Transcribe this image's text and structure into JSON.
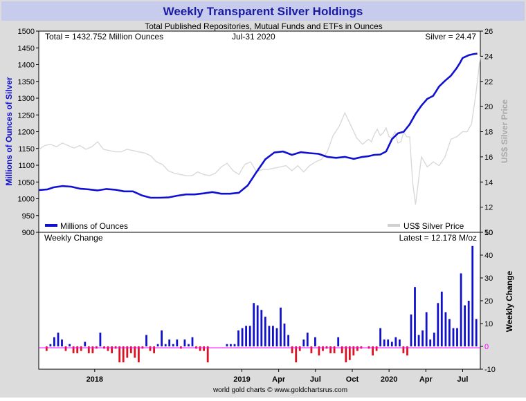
{
  "colors": {
    "frame_bg": "#dcdcdc",
    "title_band": "#c8ccec",
    "title_text": "#1a1aa0",
    "holdings_line": "#1010d0",
    "price_line": "#d9d9d9",
    "positive_bar": "#1111cc",
    "negative_bar": "#dd1122",
    "zero_line": "#ff00ff"
  },
  "chart_data": [
    {
      "type": "line",
      "title": "Weekly Transparent Silver Holdings",
      "subtitle": "Total Published Repositories, Mutual Funds and ETFs in Ounces",
      "annotations": {
        "total": "Total = 1432.752 Million Ounces",
        "date": "Jul-31  2020",
        "price": "Silver = 24.47"
      },
      "ylabel": "Millions of Ounces of Silver",
      "y2label": "US$ Silver Price",
      "ylim": [
        900,
        1500
      ],
      "yticks": [
        "1500",
        "1450",
        "1400",
        "1350",
        "1300",
        "1250",
        "1200",
        "1150",
        "1100",
        "1050",
        "1000",
        "950",
        "900"
      ],
      "y2lim": [
        10,
        26
      ],
      "y2ticks": [
        "26",
        "24",
        "22",
        "20",
        "18",
        "16",
        "14",
        "12",
        "10"
      ],
      "xlim": [
        2017.62,
        2020.62
      ],
      "grid": false,
      "legend_position": "bottom",
      "series": [
        {
          "name": "Millions of Ounces",
          "axis": "left",
          "x": [
            2017.62,
            2017.68,
            2017.72,
            2017.78,
            2017.84,
            2017.9,
            2017.96,
            2018.02,
            2018.08,
            2018.14,
            2018.2,
            2018.26,
            2018.32,
            2018.38,
            2018.44,
            2018.5,
            2018.56,
            2018.62,
            2018.68,
            2018.74,
            2018.8,
            2018.86,
            2018.92,
            2018.98,
            2019.04,
            2019.1,
            2019.16,
            2019.22,
            2019.28,
            2019.34,
            2019.4,
            2019.46,
            2019.52,
            2019.58,
            2019.64,
            2019.7,
            2019.76,
            2019.82,
            2019.86,
            2019.9,
            2019.94,
            2019.98,
            2020.02,
            2020.06,
            2020.1,
            2020.14,
            2020.18,
            2020.22,
            2020.26,
            2020.3,
            2020.34,
            2020.38,
            2020.42,
            2020.46,
            2020.48,
            2020.5,
            2020.52,
            2020.54,
            2020.56,
            2020.58,
            2020.6
          ],
          "values": [
            1026,
            1028,
            1034,
            1038,
            1036,
            1030,
            1028,
            1025,
            1029,
            1027,
            1022,
            1022,
            1010,
            1003,
            1003,
            1004,
            1009,
            1013,
            1013,
            1016,
            1020,
            1015,
            1015,
            1018,
            1040,
            1080,
            1118,
            1138,
            1141,
            1131,
            1139,
            1136,
            1134,
            1125,
            1122,
            1125,
            1119,
            1125,
            1127,
            1131,
            1132,
            1141,
            1178,
            1195,
            1200,
            1222,
            1253,
            1278,
            1298,
            1307,
            1335,
            1352,
            1367,
            1390,
            1404,
            1420,
            1424,
            1428,
            1430,
            1432,
            1433
          ]
        },
        {
          "name": "US$ Silver Price",
          "axis": "right",
          "x": [
            2017.62,
            2017.66,
            2017.7,
            2017.74,
            2017.78,
            2017.82,
            2017.86,
            2017.9,
            2017.94,
            2017.98,
            2018.02,
            2018.06,
            2018.1,
            2018.14,
            2018.18,
            2018.22,
            2018.26,
            2018.3,
            2018.34,
            2018.38,
            2018.42,
            2018.46,
            2018.5,
            2018.54,
            2018.58,
            2018.62,
            2018.66,
            2018.7,
            2018.74,
            2018.78,
            2018.82,
            2018.86,
            2018.9,
            2018.94,
            2018.98,
            2019.02,
            2019.06,
            2019.1,
            2019.14,
            2019.18,
            2019.22,
            2019.26,
            2019.3,
            2019.34,
            2019.38,
            2019.42,
            2019.46,
            2019.5,
            2019.54,
            2019.58,
            2019.62,
            2019.66,
            2019.7,
            2019.74,
            2019.78,
            2019.82,
            2019.86,
            2019.88,
            2019.9,
            2019.92,
            2019.94,
            2019.96,
            2019.98,
            2020.0,
            2020.02,
            2020.04,
            2020.06,
            2020.08,
            2020.1,
            2020.12,
            2020.14,
            2020.16,
            2020.18,
            2020.22,
            2020.26,
            2020.3,
            2020.34,
            2020.38,
            2020.42,
            2020.46,
            2020.5,
            2020.53,
            2020.56,
            2020.59,
            2020.62
          ],
          "values": [
            16.6,
            16.9,
            17.0,
            16.8,
            17.1,
            16.9,
            16.7,
            16.9,
            16.6,
            16.8,
            17.2,
            16.6,
            16.5,
            16.4,
            16.4,
            16.6,
            16.5,
            16.4,
            16.3,
            16.1,
            15.6,
            15.4,
            14.9,
            14.7,
            14.6,
            14.5,
            14.5,
            14.8,
            14.6,
            14.5,
            14.7,
            15.2,
            15.5,
            14.9,
            14.6,
            15.4,
            15.6,
            14.8,
            15.0,
            15.0,
            15.1,
            15.2,
            15.3,
            14.9,
            15.3,
            14.8,
            15.3,
            15.6,
            15.8,
            16.4,
            17.7,
            18.4,
            19.5,
            18.5,
            17.5,
            17.0,
            17.4,
            17.2,
            17.8,
            18.2,
            17.7,
            17.9,
            18.3,
            17.6,
            17.5,
            18.0,
            17.1,
            17.2,
            18.0,
            17.6,
            17.6,
            14.0,
            12.2,
            16.0,
            15.2,
            15.6,
            15.3,
            16.0,
            17.4,
            17.6,
            18.0,
            18.0,
            18.6,
            21.0,
            24.0
          ]
        }
      ]
    },
    {
      "type": "bar",
      "title": "Weekly Change",
      "annotation": "Latest = 12.178 M/oz",
      "ylabel": "Weekly Change",
      "ylim": [
        -10,
        50
      ],
      "yticks": [
        "50",
        "40",
        "30",
        "20",
        "10",
        "0",
        "-10"
      ],
      "xlim": [
        2017.62,
        2020.62
      ],
      "xticks": [
        {
          "label": "2018",
          "x": 2018.0
        },
        {
          "label": "2019",
          "x": 2019.0
        },
        {
          "label": "Apr",
          "x": 2019.25
        },
        {
          "label": "Jul",
          "x": 2019.5
        },
        {
          "label": "Oct",
          "x": 2019.75
        },
        {
          "label": "2020",
          "x": 2020.0
        },
        {
          "label": "Apr",
          "x": 2020.25
        },
        {
          "label": "Jul",
          "x": 2020.5
        }
      ],
      "values": [
        0,
        -2,
        1,
        4,
        6,
        3,
        -2,
        1,
        -3,
        -3,
        -2,
        2,
        -3,
        -3,
        -1,
        6,
        -1,
        -2,
        -3,
        -1,
        -7,
        -7,
        -5,
        -3,
        -5,
        -7,
        -1,
        5,
        -2,
        -3,
        1,
        7,
        1,
        3,
        1,
        3,
        -1,
        3,
        1,
        4,
        -1,
        -2,
        -2,
        -7,
        0,
        0,
        0,
        0,
        1,
        1,
        1,
        7,
        8,
        9,
        9,
        19,
        18,
        16,
        13,
        9,
        9,
        8,
        17,
        10,
        5,
        -3,
        -7,
        -2,
        3,
        6,
        -3,
        4,
        -4,
        -2,
        -1,
        -3,
        -3,
        4,
        -3,
        -7,
        -6,
        -4,
        -2,
        -1,
        0,
        -1,
        -4,
        -2,
        8,
        3,
        3,
        2,
        4,
        3,
        -3,
        -4,
        14,
        26,
        5,
        7,
        15,
        3,
        6,
        19,
        24,
        15,
        12,
        8,
        8,
        32,
        18,
        20,
        44,
        12
      ]
    }
  ],
  "footer": "world gold charts © www.goldchartsrus.com"
}
